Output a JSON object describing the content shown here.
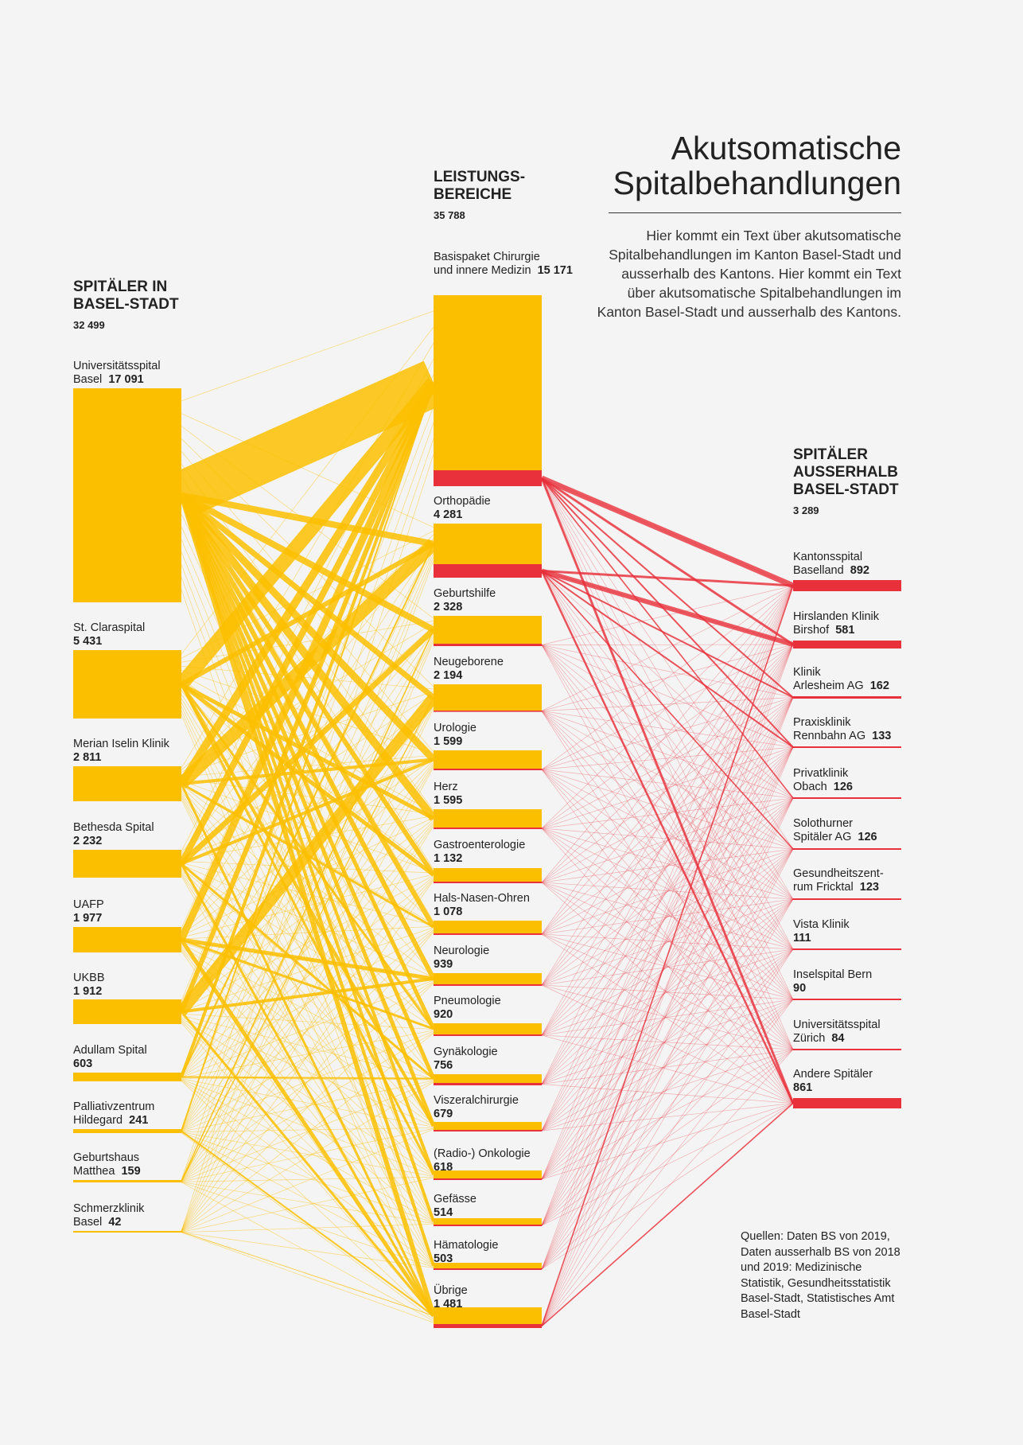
{
  "title_line1": "Akutsomatische",
  "title_line2": "Spitalbehandlungen",
  "intro": "Hier kommt ein Text über akutsomatische Spitalbehandlungen im Kanton Basel-Stadt und ausserhalb des Kantons. Hier kommt ein Text über akutsomatische Spitalbehandlungen im Kanton Basel-Stadt und ausserhalb des Kantons.",
  "colors": {
    "yellow": "#fcbf00",
    "red": "#e8313b",
    "background": "#f4f4f4"
  },
  "left_column": {
    "heading_line1": "SPITÄLER IN",
    "heading_line2": "BASEL-STADT",
    "total": "32 499",
    "nodes": [
      {
        "name1": "Universitätsspital",
        "name2": "Basel",
        "value": "17 091"
      },
      {
        "name1": "St. Claraspital",
        "name2": "",
        "value": "5 431"
      },
      {
        "name1": "Merian Iselin Klinik",
        "name2": "",
        "value": "2 811"
      },
      {
        "name1": "Bethesda Spital",
        "name2": "",
        "value": "2 232"
      },
      {
        "name1": "UAFP",
        "name2": "",
        "value": "1 977"
      },
      {
        "name1": "UKBB",
        "name2": "",
        "value": "1 912"
      },
      {
        "name1": "Adullam Spital",
        "name2": "",
        "value": "603"
      },
      {
        "name1": "Palliativzentrum",
        "name2": "Hildegard",
        "value": "241"
      },
      {
        "name1": "Geburtshaus",
        "name2": "Matthea",
        "value": "159"
      },
      {
        "name1": "Schmerzklinik",
        "name2": "Basel",
        "value": "42"
      }
    ]
  },
  "middle_column": {
    "heading_line1": "LEISTUNGS-",
    "heading_line2": "BEREICHE",
    "total": "35 788",
    "nodes": [
      {
        "name1": "Basispaket Chirurgie",
        "name2": "und innere Medizin",
        "value": "15 171"
      },
      {
        "name1": "Orthopädie",
        "name2": "",
        "value": "4 281"
      },
      {
        "name1": "Geburtshilfe",
        "name2": "",
        "value": "2 328"
      },
      {
        "name1": "Neugeborene",
        "name2": "",
        "value": "2 194"
      },
      {
        "name1": "Urologie",
        "name2": "",
        "value": "1 599"
      },
      {
        "name1": "Herz",
        "name2": "",
        "value": "1 595"
      },
      {
        "name1": "Gastroenterologie",
        "name2": "",
        "value": "1 132"
      },
      {
        "name1": "Hals-Nasen-Ohren",
        "name2": "",
        "value": "1 078"
      },
      {
        "name1": "Neurologie",
        "name2": "",
        "value": "939"
      },
      {
        "name1": "Pneumologie",
        "name2": "",
        "value": "920"
      },
      {
        "name1": "Gynäkologie",
        "name2": "",
        "value": "756"
      },
      {
        "name1": "Viszeralchirurgie",
        "name2": "",
        "value": "679"
      },
      {
        "name1": "(Radio-) Onkologie",
        "name2": "",
        "value": "618"
      },
      {
        "name1": "Gefässe",
        "name2": "",
        "value": "514"
      },
      {
        "name1": "Hämatologie",
        "name2": "",
        "value": "503"
      },
      {
        "name1": "Übrige",
        "name2": "",
        "value": "1 481"
      }
    ]
  },
  "right_column": {
    "heading_line1": "SPITÄLER",
    "heading_line2": "AUSSERHALB",
    "heading_line3": "BASEL-STADT",
    "total": "3 289",
    "nodes": [
      {
        "name1": "Kantonsspital",
        "name2": "Baselland",
        "value": "892"
      },
      {
        "name1": "Hirslanden Klinik",
        "name2": "Birshof",
        "value": "581"
      },
      {
        "name1": "Klinik",
        "name2": "Arlesheim AG",
        "value": "162"
      },
      {
        "name1": "Praxisklinik",
        "name2": "Rennbahn AG",
        "value": "133"
      },
      {
        "name1": "Privatklinik",
        "name2": "Obach",
        "value": "126"
      },
      {
        "name1": "Solothurner",
        "name2": "Spitäler AG",
        "value": "126"
      },
      {
        "name1": "Gesundheitszent-",
        "name2": "rum Fricktal",
        "value": "123"
      },
      {
        "name1": "Vista Klinik",
        "name2": "",
        "value": "111"
      },
      {
        "name1": "Inselspital Bern",
        "name2": "",
        "value": "90"
      },
      {
        "name1": "Universitätsspital",
        "name2": "Zürich",
        "value": "84"
      },
      {
        "name1": "Andere Spitäler",
        "name2": "",
        "value": "861"
      }
    ]
  },
  "sources": "Quellen: Daten BS von 2019, Daten ausserhalb BS von 2018 und 2019: Medizinische Statistik, Gesundheitsstatistik Basel-Stadt, Statistisches Amt Basel-Stadt"
}
